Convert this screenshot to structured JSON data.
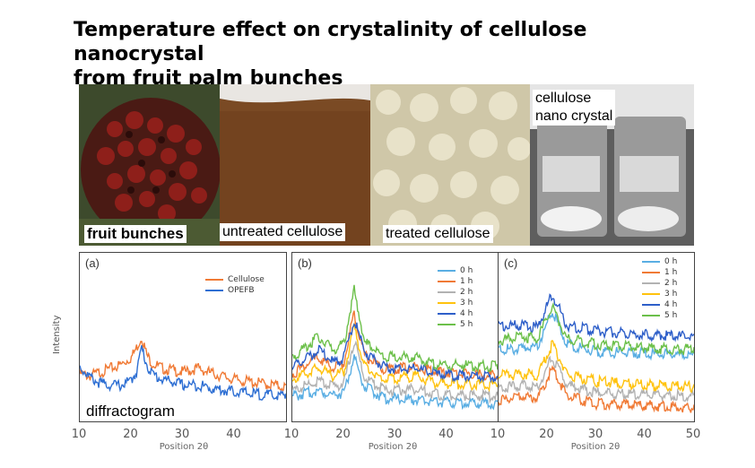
{
  "title_lines": [
    "Temperature effect on crystalinity of cellulose nanocrystal",
    "from fruit palm bunches"
  ],
  "photos": {
    "fruit_caption": "fruit bunches",
    "untreated_caption": "untreated cellulose",
    "treated_caption": "treated cellulose",
    "cnc_caption_lines": [
      "cellulose",
      "nano crystal"
    ]
  },
  "diffractogram_caption": "diffractogram",
  "ylabel": "Intensity",
  "xlabel": "Position 2θ",
  "colors": {
    "0 h": "#5aaee3",
    "1 h": "#f07a35",
    "2 h": "#b2b2b2",
    "3 h": "#ffc20e",
    "4 h": "#2e5fc9",
    "5 h": "#6cc04a"
  },
  "chart_data": [
    {
      "type": "line",
      "panel": "(a)",
      "x_ticks": [
        10,
        20,
        30,
        40
      ],
      "xlim": [
        10,
        50
      ],
      "series": [
        {
          "name": "Cellulose",
          "color": "#f07a35",
          "points": [
            [
              10,
              52
            ],
            [
              12,
              50
            ],
            [
              14,
              54
            ],
            [
              16,
              58
            ],
            [
              18,
              62
            ],
            [
              20,
              70
            ],
            [
              21,
              80
            ],
            [
              22,
              92
            ],
            [
              23,
              72
            ],
            [
              24,
              64
            ],
            [
              26,
              58
            ],
            [
              28,
              56
            ],
            [
              30,
              54
            ],
            [
              33,
              58
            ],
            [
              36,
              52
            ],
            [
              40,
              46
            ],
            [
              45,
              42
            ],
            [
              50,
              38
            ]
          ]
        },
        {
          "name": "OPEFB",
          "color": "#2e6fd3",
          "points": [
            [
              10,
              60
            ],
            [
              12,
              48
            ],
            [
              14,
              42
            ],
            [
              16,
              40
            ],
            [
              18,
              40
            ],
            [
              20,
              45
            ],
            [
              21,
              55
            ],
            [
              22,
              80
            ],
            [
              23,
              62
            ],
            [
              24,
              52
            ],
            [
              26,
              46
            ],
            [
              28,
              44
            ],
            [
              30,
              40
            ],
            [
              33,
              40
            ],
            [
              36,
              36
            ],
            [
              40,
              33
            ],
            [
              45,
              30
            ],
            [
              50,
              28
            ]
          ]
        }
      ]
    },
    {
      "type": "line",
      "panel": "(b)",
      "x_ticks": [
        10,
        20,
        30,
        40
      ],
      "xlim": [
        10,
        50
      ],
      "series": [
        {
          "name": "0 h",
          "points": [
            [
              10,
              28
            ],
            [
              15,
              34
            ],
            [
              18,
              30
            ],
            [
              20,
              32
            ],
            [
              22,
              70
            ],
            [
              24,
              38
            ],
            [
              28,
              26
            ],
            [
              34,
              24
            ],
            [
              38,
              22
            ],
            [
              50,
              20
            ]
          ]
        },
        {
          "name": "1 h",
          "points": [
            [
              10,
              52
            ],
            [
              15,
              70
            ],
            [
              18,
              58
            ],
            [
              20,
              64
            ],
            [
              22,
              118
            ],
            [
              24,
              72
            ],
            [
              28,
              56
            ],
            [
              34,
              60
            ],
            [
              38,
              54
            ],
            [
              50,
              50
            ]
          ]
        },
        {
          "name": "2 h",
          "points": [
            [
              10,
              34
            ],
            [
              15,
              44
            ],
            [
              18,
              38
            ],
            [
              20,
              42
            ],
            [
              22,
              88
            ],
            [
              24,
              48
            ],
            [
              28,
              34
            ],
            [
              34,
              36
            ],
            [
              38,
              30
            ],
            [
              50,
              28
            ]
          ]
        },
        {
          "name": "3 h",
          "points": [
            [
              10,
              46
            ],
            [
              15,
              58
            ],
            [
              18,
              50
            ],
            [
              20,
              54
            ],
            [
              22,
              102
            ],
            [
              24,
              60
            ],
            [
              28,
              46
            ],
            [
              34,
              50
            ],
            [
              38,
              42
            ],
            [
              50,
              40
            ]
          ]
        },
        {
          "name": "4 h",
          "points": [
            [
              10,
              58
            ],
            [
              15,
              78
            ],
            [
              18,
              64
            ],
            [
              20,
              70
            ],
            [
              22,
              110
            ],
            [
              24,
              76
            ],
            [
              28,
              58
            ],
            [
              34,
              58
            ],
            [
              38,
              52
            ],
            [
              50,
              48
            ]
          ]
        },
        {
          "name": "5 h",
          "points": [
            [
              10,
              70
            ],
            [
              15,
              92
            ],
            [
              18,
              78
            ],
            [
              20,
              84
            ],
            [
              22,
              142
            ],
            [
              24,
              86
            ],
            [
              28,
              70
            ],
            [
              34,
              70
            ],
            [
              38,
              62
            ],
            [
              50,
              60
            ]
          ]
        }
      ]
    },
    {
      "type": "line",
      "panel": "(c)",
      "x_ticks": [
        10,
        20,
        30,
        40,
        50
      ],
      "xlim": [
        10,
        50
      ],
      "series": [
        {
          "name": "0 h",
          "points": [
            [
              10,
              78
            ],
            [
              15,
              80
            ],
            [
              18,
              82
            ],
            [
              21,
              120
            ],
            [
              24,
              84
            ],
            [
              30,
              76
            ],
            [
              40,
              74
            ],
            [
              50,
              72
            ]
          ]
        },
        {
          "name": "1 h",
          "points": [
            [
              10,
              24
            ],
            [
              15,
              28
            ],
            [
              18,
              26
            ],
            [
              21,
              58
            ],
            [
              24,
              28
            ],
            [
              30,
              20
            ],
            [
              40,
              18
            ],
            [
              50,
              16
            ]
          ]
        },
        {
          "name": "2 h",
          "points": [
            [
              10,
              36
            ],
            [
              15,
              40
            ],
            [
              18,
              38
            ],
            [
              21,
              70
            ],
            [
              24,
              40
            ],
            [
              30,
              32
            ],
            [
              40,
              30
            ],
            [
              50,
              28
            ]
          ]
        },
        {
          "name": "3 h",
          "points": [
            [
              10,
              50
            ],
            [
              15,
              52
            ],
            [
              18,
              50
            ],
            [
              21,
              84
            ],
            [
              24,
              52
            ],
            [
              30,
              44
            ],
            [
              40,
              40
            ],
            [
              50,
              38
            ]
          ]
        },
        {
          "name": "4 h",
          "points": [
            [
              10,
              104
            ],
            [
              15,
              104
            ],
            [
              18,
              102
            ],
            [
              21,
              138
            ],
            [
              24,
              104
            ],
            [
              30,
              98
            ],
            [
              40,
              94
            ],
            [
              50,
              92
            ]
          ]
        },
        {
          "name": "5 h",
          "points": [
            [
              10,
              88
            ],
            [
              15,
              92
            ],
            [
              18,
              90
            ],
            [
              21,
              124
            ],
            [
              24,
              90
            ],
            [
              30,
              84
            ],
            [
              40,
              80
            ],
            [
              50,
              78
            ]
          ]
        }
      ]
    }
  ]
}
